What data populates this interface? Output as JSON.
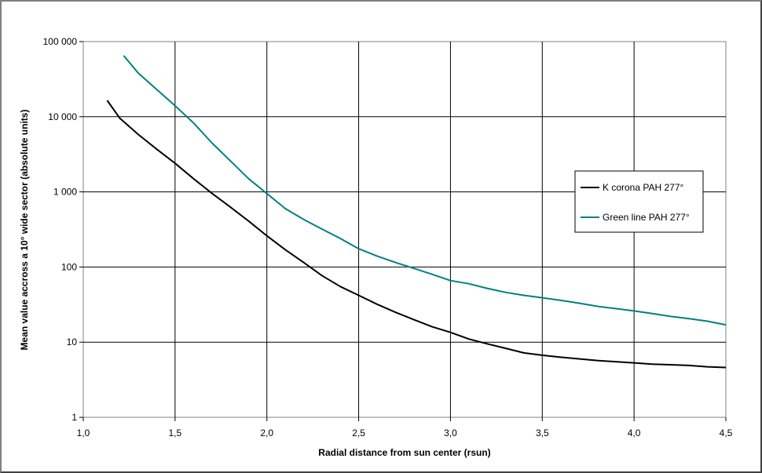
{
  "chart_data": {
    "type": "line",
    "title": "",
    "xlabel": "Radial distance from sun center (rsun)",
    "ylabel": "Mean value accross a 10° wide sector (absolute units)",
    "xlim": [
      1.0,
      4.5
    ],
    "ylim": [
      1,
      100000
    ],
    "yscale": "log",
    "grid": true,
    "legend_position": "right",
    "x_ticks": [
      1.0,
      1.5,
      2.0,
      2.5,
      3.0,
      3.5,
      4.0,
      4.5
    ],
    "x_tick_labels": [
      "1,0",
      "1,5",
      "2,0",
      "2,5",
      "3,0",
      "3,5",
      "4,0",
      "4,5"
    ],
    "y_ticks": [
      1,
      10,
      100,
      1000,
      10000,
      100000
    ],
    "y_tick_labels": [
      "1",
      "10",
      "100",
      "1 000",
      "10 000",
      "100 000"
    ],
    "series": [
      {
        "name": "K corona PAH 277°",
        "color": "#000000",
        "x": [
          1.13,
          1.2,
          1.3,
          1.4,
          1.5,
          1.6,
          1.7,
          1.8,
          1.9,
          2.0,
          2.1,
          2.2,
          2.3,
          2.4,
          2.5,
          2.6,
          2.7,
          2.8,
          2.9,
          3.0,
          3.1,
          3.2,
          3.3,
          3.4,
          3.5,
          3.6,
          3.7,
          3.8,
          3.9,
          4.0,
          4.1,
          4.2,
          4.3,
          4.4,
          4.5
        ],
        "y": [
          16500,
          9500,
          5800,
          3700,
          2400,
          1500,
          960,
          630,
          410,
          260,
          170,
          115,
          77,
          55,
          42,
          32,
          25,
          20,
          16,
          13.5,
          11,
          9.5,
          8.3,
          7.2,
          6.7,
          6.3,
          6.0,
          5.7,
          5.5,
          5.3,
          5.1,
          5.0,
          4.9,
          4.7,
          4.6
        ]
      },
      {
        "name": "Green line PAH 277°",
        "color": "#008080",
        "x": [
          1.22,
          1.3,
          1.4,
          1.5,
          1.6,
          1.7,
          1.8,
          1.9,
          2.0,
          2.1,
          2.2,
          2.3,
          2.4,
          2.5,
          2.6,
          2.7,
          2.8,
          2.9,
          3.0,
          3.1,
          3.2,
          3.3,
          3.4,
          3.5,
          3.6,
          3.7,
          3.8,
          3.9,
          4.0,
          4.1,
          4.2,
          4.3,
          4.4,
          4.5
        ],
        "y": [
          65000,
          38000,
          23000,
          14000,
          8300,
          4500,
          2600,
          1500,
          950,
          600,
          430,
          320,
          240,
          175,
          140,
          115,
          96,
          80,
          66,
          60,
          52,
          46,
          42,
          39,
          36,
          33,
          30,
          28,
          26,
          24,
          22,
          20.5,
          19,
          17
        ]
      }
    ]
  }
}
